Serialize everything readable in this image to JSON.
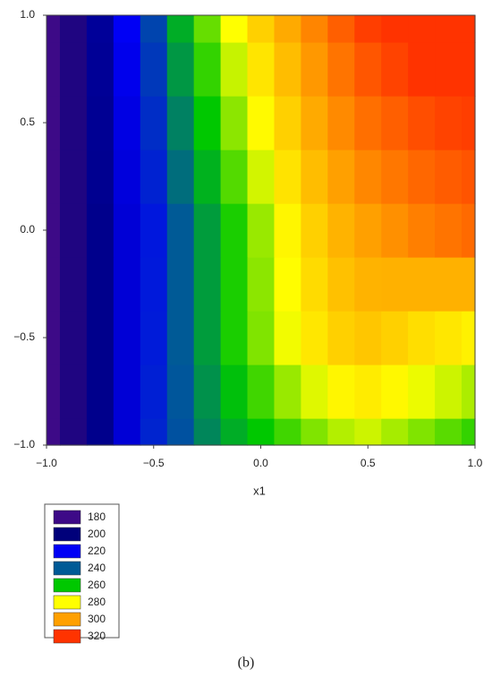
{
  "chart_data": {
    "type": "contour",
    "x_label": "x1",
    "caption": "(b)",
    "x": [
      -1,
      -0.875,
      -0.75,
      -0.625,
      -0.5,
      -0.375,
      -0.25,
      -0.125,
      0,
      0.125,
      0.25,
      0.375,
      0.5,
      0.625,
      0.75,
      0.875,
      1
    ],
    "y": [
      -1,
      -0.75,
      -0.5,
      -0.25,
      0,
      0.25,
      0.5,
      0.75,
      1
    ],
    "z": [
      [
        180,
        190,
        203,
        215,
        228,
        238,
        248,
        255,
        260,
        265,
        270,
        274,
        276,
        273,
        270,
        267,
        264
      ],
      [
        180,
        190,
        203,
        215,
        227,
        239,
        250,
        258.5,
        265,
        272,
        277.5,
        282,
        284,
        281.5,
        278.5,
        276,
        273.5
      ],
      [
        180,
        190,
        203,
        215,
        226,
        240,
        252,
        262,
        270,
        279,
        285,
        290,
        292,
        290,
        287,
        285,
        283
      ],
      [
        180,
        190,
        203,
        215,
        225.5,
        240,
        252,
        262,
        271,
        280.5,
        287.5,
        293,
        296,
        296.5,
        296.5,
        296.5,
        296.5
      ],
      [
        180,
        190,
        203,
        215,
        225,
        240,
        252,
        262,
        272,
        282,
        290,
        296,
        300,
        303,
        306,
        308,
        310
      ],
      [
        180,
        190,
        203.5,
        216,
        227.5,
        243.5,
        256,
        266.5,
        276.5,
        286,
        294,
        300,
        304.5,
        307.5,
        310.5,
        312.5,
        314
      ],
      [
        180,
        190,
        204,
        217,
        230,
        247,
        260,
        271,
        281,
        290,
        298,
        304,
        309,
        312,
        315,
        317,
        318
      ],
      [
        180,
        190,
        204.5,
        218.5,
        232.5,
        251,
        264,
        275.5,
        285.5,
        294,
        301.5,
        308,
        313.5,
        317,
        320,
        322.5,
        324
      ],
      [
        180,
        190,
        205,
        220,
        235,
        255,
        268,
        280,
        290,
        298,
        305,
        312,
        318,
        322,
        325,
        328,
        330
      ]
    ],
    "xlim": [
      -1,
      1
    ],
    "ylim": [
      -1,
      1
    ],
    "xticks": [
      {
        "value": -1,
        "label": "−1.0"
      },
      {
        "value": -0.5,
        "label": "−0.5"
      },
      {
        "value": 0,
        "label": "0.0"
      },
      0.5,
      {
        "value": 1,
        "label": "1.0"
      }
    ],
    "yticks": [
      {
        "value": -1,
        "label": "−1.0"
      },
      {
        "value": -0.5,
        "label": "−0.5"
      },
      {
        "value": 0,
        "label": "0.0"
      },
      0.5,
      {
        "value": 1,
        "label": "1.0"
      }
    ],
    "legend": {
      "levels": [
        180,
        200,
        220,
        240,
        260,
        280,
        300,
        320
      ],
      "colors": [
        "#3d0a87",
        "#00007a",
        "#0000f5",
        "#005a96",
        "#00c800",
        "#ffff00",
        "#ffa000",
        "#ff3300"
      ]
    }
  }
}
